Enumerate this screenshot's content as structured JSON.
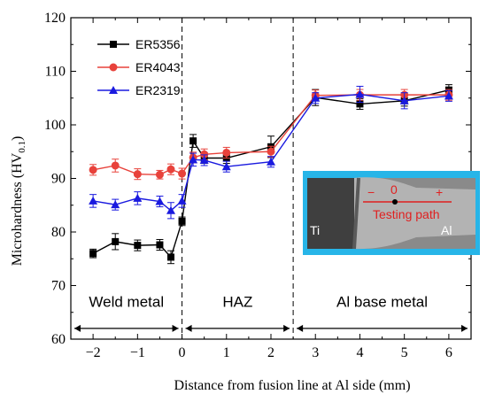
{
  "chart_data": {
    "type": "line",
    "xlabel": "Distance from fusion line at Al side (mm)",
    "ylabel_main": "Microhardness (HV",
    "ylabel_sub": "0.1",
    "ylabel_close": ")",
    "xlim": [
      -2.5,
      6.5
    ],
    "ylim": [
      60,
      120
    ],
    "xticks": [
      -2,
      -1,
      0,
      1,
      2,
      3,
      4,
      5,
      6
    ],
    "xtick_labels": [
      "−2",
      "−1",
      "0",
      "1",
      "2",
      "3",
      "4",
      "5",
      "6"
    ],
    "yticks": [
      60,
      70,
      80,
      90,
      100,
      110,
      120
    ],
    "ytick_labels": [
      "60",
      "70",
      "80",
      "90",
      "100",
      "110",
      "120"
    ],
    "vlines": [
      0,
      2.5
    ],
    "series": [
      {
        "name": "ER5356",
        "color": "#000000",
        "marker": "square",
        "x": [
          -2,
          -1.5,
          -1,
          -0.5,
          -0.25,
          0,
          0.25,
          0.5,
          1,
          2,
          3,
          4,
          5,
          6
        ],
        "y": [
          76.0,
          78.2,
          77.5,
          77.6,
          75.3,
          82.0,
          97.0,
          93.8,
          93.8,
          95.9,
          105.1,
          103.9,
          104.5,
          106.5
        ],
        "err": [
          0.8,
          1.5,
          1.0,
          1.0,
          1.2,
          0.8,
          1.2,
          1.0,
          1.0,
          2.0,
          1.5,
          1.0,
          1.0,
          1.0
        ]
      },
      {
        "name": "ER4043",
        "color": "#e8423b",
        "marker": "circle",
        "x": [
          -2,
          -1.5,
          -1,
          -0.5,
          -0.25,
          0,
          0.25,
          0.5,
          1,
          2,
          3,
          4,
          5,
          6
        ],
        "y": [
          91.6,
          92.4,
          90.8,
          90.7,
          91.7,
          90.9,
          93.9,
          94.5,
          94.8,
          95.0,
          105.5,
          105.6,
          105.6,
          105.6
        ],
        "err": [
          1.0,
          1.2,
          1.0,
          0.8,
          1.0,
          1.0,
          1.0,
          1.0,
          1.0,
          1.0,
          1.0,
          1.0,
          1.0,
          1.0
        ]
      },
      {
        "name": "ER2319",
        "color": "#1a1adf",
        "marker": "triangle",
        "x": [
          -2,
          -1.5,
          -1,
          -0.5,
          -0.25,
          0,
          0.25,
          0.5,
          1,
          2,
          3,
          4,
          5,
          6
        ],
        "y": [
          85.8,
          85.1,
          86.3,
          85.7,
          84.0,
          85.8,
          93.5,
          93.4,
          92.2,
          93.1,
          105.0,
          105.7,
          104.5,
          105.4
        ],
        "err": [
          1.2,
          1.0,
          1.2,
          1.0,
          1.5,
          1.2,
          1.2,
          1.0,
          1.0,
          1.0,
          1.0,
          1.5,
          1.5,
          1.0
        ]
      }
    ],
    "regions": [
      {
        "label": "Weld metal",
        "from": -2.5,
        "to": 0
      },
      {
        "label": "HAZ",
        "from": 0,
        "to": 2.5
      },
      {
        "label": "Al base metal",
        "from": 2.5,
        "to": 6.5
      }
    ],
    "legend_position": "top-left"
  },
  "inset": {
    "background": "#27b5e8",
    "label_left": "Ti",
    "label_right": "Al",
    "minus": "−",
    "zero": "0",
    "plus": "+",
    "path_label": "Testing path",
    "path_color": "#e02020"
  }
}
